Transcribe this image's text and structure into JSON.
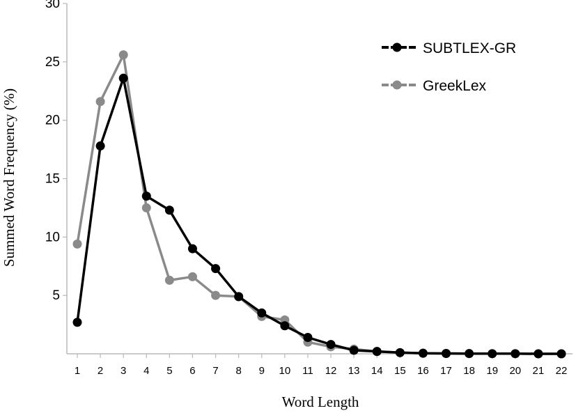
{
  "chart_data": {
    "type": "line",
    "xlabel": "Word Length",
    "ylabel": "Summed Word Frequency (%)",
    "x": [
      1,
      2,
      3,
      4,
      5,
      6,
      7,
      8,
      9,
      10,
      11,
      12,
      13,
      14,
      15,
      16,
      17,
      18,
      19,
      20,
      21,
      22
    ],
    "ylim": [
      0,
      30
    ],
    "yticks": [
      5,
      10,
      15,
      20,
      25,
      30
    ],
    "grid": false,
    "legend_position": "top-right",
    "series": [
      {
        "name": "SUBTLEX-GR",
        "color": "#000000",
        "values": [
          2.7,
          17.8,
          23.6,
          13.5,
          12.3,
          9.0,
          7.3,
          4.9,
          3.5,
          2.4,
          1.4,
          0.8,
          0.3,
          0.2,
          0.1,
          0.05,
          0.03,
          0.02,
          0.01,
          0.01,
          0.0,
          0.0
        ]
      },
      {
        "name": "GreekLex",
        "color": "#8a8a8a",
        "values": [
          9.4,
          21.6,
          25.6,
          12.5,
          6.3,
          6.6,
          5.0,
          4.9,
          3.2,
          2.9,
          1.0,
          0.6,
          0.4,
          0.2,
          0.1,
          0.05,
          0.03,
          0.02,
          0.01,
          0.01,
          0.0,
          0.0
        ]
      }
    ]
  }
}
